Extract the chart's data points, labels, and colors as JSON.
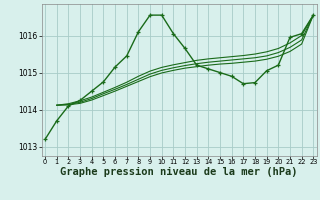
{
  "background_color": "#d8f0ec",
  "grid_color": "#a8ccc8",
  "line_color": "#1a6b1a",
  "xlabel": "Graphe pression niveau de la mer (hPa)",
  "xlabel_fontsize": 7.5,
  "ylim": [
    1012.75,
    1016.85
  ],
  "xlim": [
    -0.3,
    23.3
  ],
  "yticks": [
    1013,
    1014,
    1015,
    1016
  ],
  "xticks": [
    0,
    1,
    2,
    3,
    4,
    5,
    6,
    7,
    8,
    9,
    10,
    11,
    12,
    13,
    14,
    15,
    16,
    17,
    18,
    19,
    20,
    21,
    22,
    23
  ],
  "series": [
    {
      "x": [
        0,
        1,
        2,
        3,
        4,
        5,
        6,
        7,
        8,
        9,
        10,
        11,
        12,
        13,
        14,
        15,
        16,
        17,
        18,
        19,
        20,
        21,
        22,
        23
      ],
      "y": [
        1013.2,
        1013.7,
        1014.1,
        1014.25,
        1014.5,
        1014.75,
        1015.15,
        1015.45,
        1016.1,
        1016.55,
        1016.55,
        1016.05,
        1015.65,
        1015.2,
        1015.1,
        1015.0,
        1014.9,
        1014.7,
        1014.73,
        1015.05,
        1015.2,
        1015.95,
        1016.05,
        1016.55
      ],
      "marker": true,
      "lw": 1.0
    },
    {
      "x": [
        1,
        2,
        3,
        4,
        5,
        6,
        7,
        8,
        9,
        10,
        11,
        12,
        13,
        14,
        15,
        16,
        17,
        18,
        19,
        20,
        21,
        22,
        23
      ],
      "y": [
        1014.12,
        1014.16,
        1014.24,
        1014.34,
        1014.47,
        1014.6,
        1014.74,
        1014.9,
        1015.04,
        1015.14,
        1015.21,
        1015.27,
        1015.33,
        1015.37,
        1015.4,
        1015.43,
        1015.46,
        1015.5,
        1015.56,
        1015.65,
        1015.8,
        1016.0,
        1016.55
      ],
      "marker": false,
      "lw": 0.8
    },
    {
      "x": [
        1,
        2,
        3,
        4,
        5,
        6,
        7,
        8,
        9,
        10,
        11,
        12,
        13,
        14,
        15,
        16,
        17,
        18,
        19,
        20,
        21,
        22,
        23
      ],
      "y": [
        1014.12,
        1014.14,
        1014.2,
        1014.3,
        1014.43,
        1014.55,
        1014.68,
        1014.82,
        1014.96,
        1015.06,
        1015.13,
        1015.19,
        1015.24,
        1015.28,
        1015.31,
        1015.34,
        1015.37,
        1015.4,
        1015.45,
        1015.54,
        1015.68,
        1015.88,
        1016.55
      ],
      "marker": false,
      "lw": 0.8
    },
    {
      "x": [
        1,
        2,
        3,
        4,
        5,
        6,
        7,
        8,
        9,
        10,
        11,
        12,
        13,
        14,
        15,
        16,
        17,
        18,
        19,
        20,
        21,
        22,
        23
      ],
      "y": [
        1014.12,
        1014.13,
        1014.17,
        1014.26,
        1014.38,
        1014.5,
        1014.63,
        1014.76,
        1014.89,
        1014.99,
        1015.06,
        1015.12,
        1015.16,
        1015.2,
        1015.23,
        1015.25,
        1015.28,
        1015.31,
        1015.36,
        1015.44,
        1015.57,
        1015.77,
        1016.55
      ],
      "marker": false,
      "lw": 0.8
    }
  ],
  "figwidth": 3.2,
  "figheight": 2.0,
  "dpi": 100
}
